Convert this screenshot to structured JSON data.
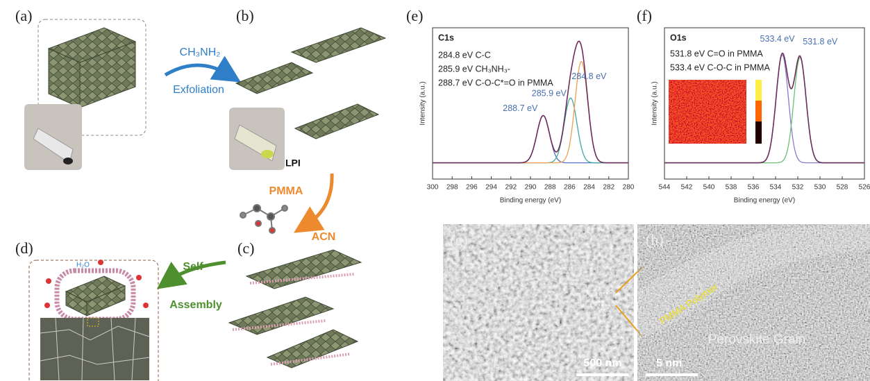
{
  "panels": {
    "a": "(a)",
    "b": "(b)",
    "c": "(c)",
    "d": "(d)",
    "e": "(e)",
    "f": "(f)",
    "g": "(g)",
    "h": "(h)"
  },
  "schematic": {
    "reagent": "CH₃NH₂",
    "step1": "Exfoliation",
    "product": "LPI",
    "polymer": "PMMA",
    "solvent": "ACN",
    "step2_line1": "Self",
    "step2_line2": "Assembly",
    "water": "H₂O"
  },
  "chart_data": [
    {
      "type": "line",
      "title": "C1s",
      "notes": [
        "284.8 eV C-C",
        "285.9 eV CH₃NH₃-",
        "288.7 eV C-O-C*=O  in PMMA"
      ],
      "x_label": "Binding energy (eV)",
      "y_label": "Intensity (a.u.)",
      "xlim": [
        300,
        280
      ],
      "xticks": [
        300,
        298,
        296,
        294,
        292,
        290,
        288,
        286,
        284,
        282,
        280
      ],
      "ylim": [
        -0.12,
        1
      ],
      "x": [
        288.7,
        285.9,
        284.8
      ],
      "values": [
        0.35,
        0.48,
        0.75
      ],
      "x_labels": [
        "288.7 eV",
        "285.9 eV",
        "284.8 eV"
      ],
      "colors": [
        "#5a6fc0",
        "#3fa9a0",
        "#f0a050"
      ],
      "envelope_color": "#6b2d5c"
    },
    {
      "type": "line",
      "title": "O1s",
      "notes": [
        "531.8 eV C=O in PMMA",
        "533.4 eV C-O-C in PMMA"
      ],
      "x_label": "Binding energy (eV)",
      "y_label": "Intensity (a.u.)",
      "xlim": [
        544,
        526
      ],
      "xticks": [
        544,
        542,
        540,
        538,
        536,
        534,
        532,
        530,
        528,
        526
      ],
      "ylim": [
        -0.12,
        1
      ],
      "x": [
        533.4,
        531.8
      ],
      "values": [
        0.8,
        0.78
      ],
      "x_labels": [
        "533.4 eV",
        "531.8 eV"
      ],
      "colors": [
        "#8a7ad0",
        "#6cc070"
      ],
      "envelope_color": "#6b2d5c"
    }
  ],
  "micrographs": {
    "g": {
      "scale_bar": "500 nm"
    },
    "h": {
      "scale_bar": "5 nm",
      "annotations": [
        "PMMA Polymer",
        "Perovskite Grain"
      ]
    }
  }
}
